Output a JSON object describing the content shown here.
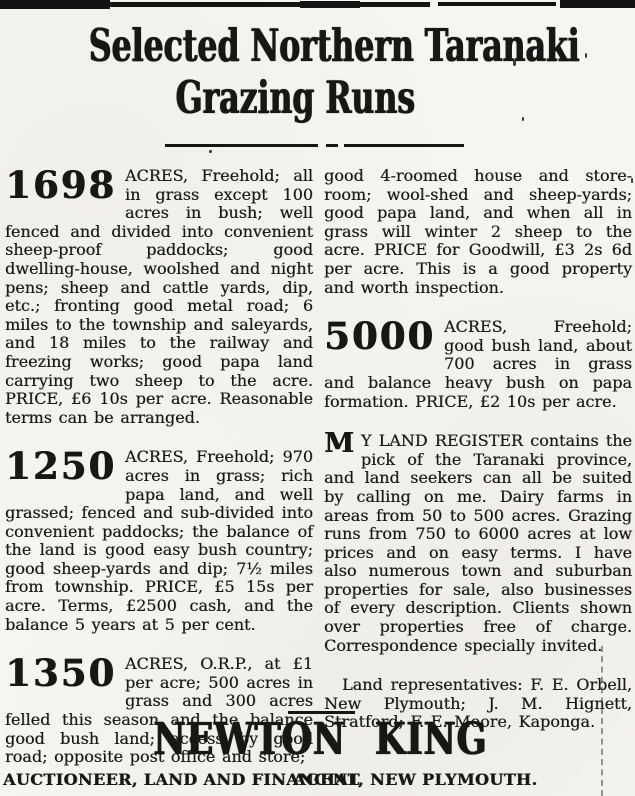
{
  "title": {
    "line1": "Selected Northern Taranaki",
    "line2": "Grazing Runs"
  },
  "columns": {
    "left": [
      {
        "number": "1698",
        "text": "ACRES, Freehold; all in grass except 100 acres in bush; well fenced and divided into convenient sheep-proof paddocks; good dwelling-house, woolshed and night pens; sheep and cattle yards, dip, etc.; fronting good metal road; 6 miles to the township and saleyards, and 18 miles to the railway and freezing works; good papa land carrying two sheep to the acre. PRICE, £6 10s per acre. Reasonable terms can be arranged."
      },
      {
        "number": "1250",
        "text": "ACRES, Freehold; 970 acres in grass; rich papa land, and well grassed; fenced and sub-divided into convenient paddocks; the balance of the land is good easy bush country; good sheep-yards and dip; 7½ miles from township. PRICE, £5 15s per acre. Terms, £2500 cash, and the balance 5 years at 5 per cent."
      },
      {
        "number": "1350",
        "text": "ACRES, O.R.P., at £1 per acre; 500 acres in grass and 300 acres felled this season and the balance good bush land; access by good road; opposite post office and store;"
      }
    ],
    "right": [
      {
        "text": "good 4-roomed house and store-room; wool-shed and sheep-yards; good papa land, and when all in grass will winter 2 sheep to the acre. PRICE for Goodwill, £3 2s 6d per acre. This is a good property and worth inspection."
      },
      {
        "number": "5000",
        "text": "ACRES, Freehold; good bush land, about 700 acres in grass and balance heavy bush on papa formation. PRICE, £2 10s per acre."
      },
      {
        "dropcap": "M",
        "text": "Y LAND REGISTER contains the pick of the Taranaki province, and land seekers can all be suited by calling on me. Dairy farms in areas from 50 to 500 acres. Grazing runs from 750 to 6000 acres at low prices and on easy terms. I have also numerous town and suburban properties for sale, also businesses of every description. Clients shown over properties free of charge. Correspondence specially invited."
      },
      {
        "text": "Land representatives: F. E. Orbell, New Plymouth; J. M. Hignett, Stratford; F. E. Moore, Kaponga."
      }
    ]
  },
  "footer": {
    "name": "NEWTON KING",
    "line_left": "AUCTIONEER, LAND AND FINANCIAL",
    "line_right": "AGENT, NEW PLYMOUTH."
  },
  "colors": {
    "ink": "#181715",
    "paper": "#f7f5f1"
  }
}
